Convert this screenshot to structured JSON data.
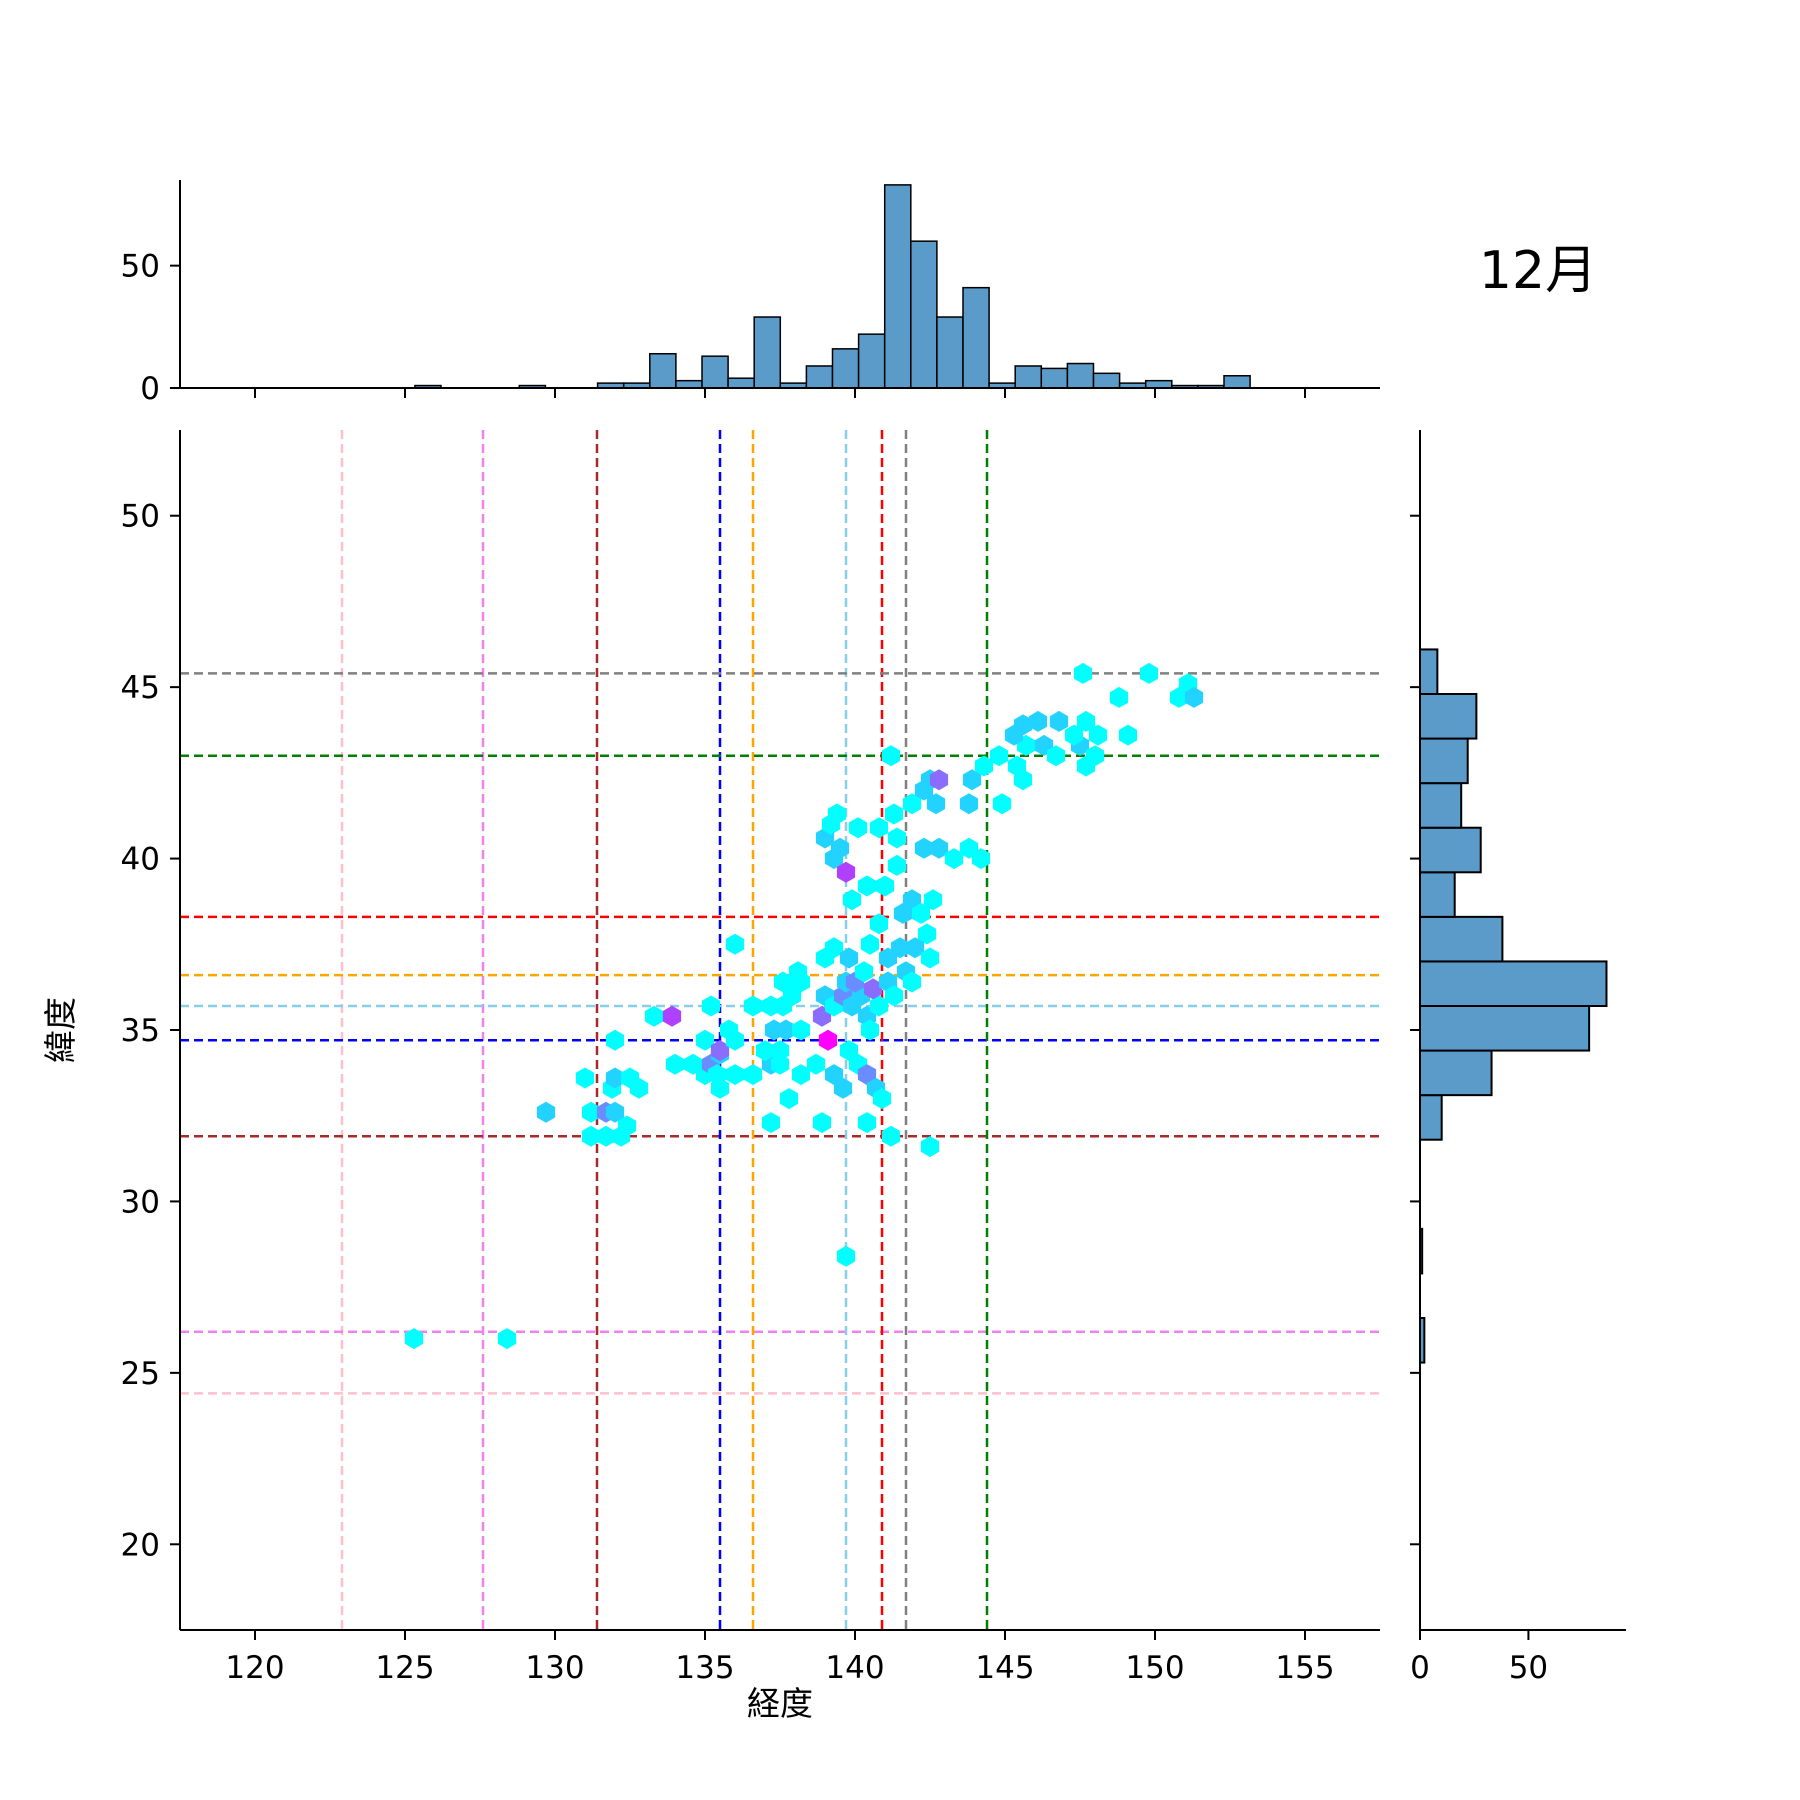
{
  "chart_data": {
    "type": "hexbin-jointplot",
    "title": "12月",
    "xlabel": "経度",
    "ylabel": "緯度",
    "xlim": [
      117.5,
      157.5
    ],
    "ylim": [
      17.5,
      52.5
    ],
    "x_ticks": [
      120,
      125,
      130,
      135,
      140,
      145,
      150,
      155
    ],
    "y_ticks": [
      20,
      25,
      30,
      35,
      40,
      45,
      50
    ],
    "reference_lines": [
      {
        "color": "#ffc0cb",
        "longitude": 122.9,
        "latitude": 24.4
      },
      {
        "color": "#ee82ee",
        "longitude": 127.6,
        "latitude": 26.2
      },
      {
        "color": "#a52a2a",
        "longitude": 131.4,
        "latitude": 31.9
      },
      {
        "color": "#0000ff",
        "longitude": 135.5,
        "latitude": 34.7
      },
      {
        "color": "#ffa500",
        "longitude": 136.6,
        "latitude": 36.6
      },
      {
        "color": "#87ceeb",
        "longitude": 139.7,
        "latitude": 35.7
      },
      {
        "color": "#ff0000",
        "longitude": 140.9,
        "latitude": 38.3
      },
      {
        "color": "#808080",
        "longitude": 141.7,
        "latitude": 45.4
      },
      {
        "color": "#008000",
        "longitude": 144.4,
        "latitude": 43.0
      }
    ],
    "hexbins": [
      {
        "x": 125.3,
        "y": 26.0,
        "c": "#00ffff"
      },
      {
        "x": 128.4,
        "y": 26.0,
        "c": "#00ffff"
      },
      {
        "x": 139.7,
        "y": 28.4,
        "c": "#00ffff"
      },
      {
        "x": 129.7,
        "y": 32.6,
        "c": "#22d2ff"
      },
      {
        "x": 131.2,
        "y": 32.6,
        "c": "#00ffff"
      },
      {
        "x": 131.2,
        "y": 31.9,
        "c": "#00ffff"
      },
      {
        "x": 131.7,
        "y": 32.6,
        "c": "#6a8cff"
      },
      {
        "x": 132.0,
        "y": 32.6,
        "c": "#22d2ff"
      },
      {
        "x": 131.9,
        "y": 33.3,
        "c": "#00ffff"
      },
      {
        "x": 131.0,
        "y": 33.6,
        "c": "#00ffff"
      },
      {
        "x": 132.0,
        "y": 33.6,
        "c": "#22d2ff"
      },
      {
        "x": 132.5,
        "y": 33.6,
        "c": "#00ffff"
      },
      {
        "x": 132.8,
        "y": 33.3,
        "c": "#00ffff"
      },
      {
        "x": 132.0,
        "y": 34.7,
        "c": "#00ffff"
      },
      {
        "x": 131.7,
        "y": 31.9,
        "c": "#00ffff"
      },
      {
        "x": 132.2,
        "y": 31.9,
        "c": "#00ffff"
      },
      {
        "x": 132.4,
        "y": 32.2,
        "c": "#00ffff"
      },
      {
        "x": 133.3,
        "y": 35.4,
        "c": "#00ffff"
      },
      {
        "x": 133.9,
        "y": 35.4,
        "c": "#b040ff"
      },
      {
        "x": 134.0,
        "y": 34.0,
        "c": "#00ffff"
      },
      {
        "x": 134.6,
        "y": 34.0,
        "c": "#00ffff"
      },
      {
        "x": 135.0,
        "y": 33.7,
        "c": "#00ffff"
      },
      {
        "x": 135.2,
        "y": 34.0,
        "c": "#6a8cff"
      },
      {
        "x": 135.5,
        "y": 34.3,
        "c": "#22d2ff"
      },
      {
        "x": 135.4,
        "y": 33.7,
        "c": "#00ffff"
      },
      {
        "x": 135.0,
        "y": 34.7,
        "c": "#00ffff"
      },
      {
        "x": 135.5,
        "y": 34.4,
        "c": "#8a6cff"
      },
      {
        "x": 135.2,
        "y": 35.7,
        "c": "#00ffff"
      },
      {
        "x": 135.8,
        "y": 35.0,
        "c": "#00ffff"
      },
      {
        "x": 136.0,
        "y": 34.7,
        "c": "#00ffff"
      },
      {
        "x": 135.5,
        "y": 33.3,
        "c": "#00ffff"
      },
      {
        "x": 136.0,
        "y": 33.7,
        "c": "#00ffff"
      },
      {
        "x": 136.0,
        "y": 37.5,
        "c": "#00ffff"
      },
      {
        "x": 136.6,
        "y": 35.7,
        "c": "#00ffff"
      },
      {
        "x": 137.2,
        "y": 35.7,
        "c": "#00ffff"
      },
      {
        "x": 136.6,
        "y": 33.7,
        "c": "#00ffff"
      },
      {
        "x": 137.2,
        "y": 34.0,
        "c": "#22d2ff"
      },
      {
        "x": 137.0,
        "y": 34.4,
        "c": "#00ffff"
      },
      {
        "x": 137.5,
        "y": 34.4,
        "c": "#00ffff"
      },
      {
        "x": 137.3,
        "y": 35.0,
        "c": "#22d2ff"
      },
      {
        "x": 137.7,
        "y": 35.0,
        "c": "#22d2ff"
      },
      {
        "x": 138.2,
        "y": 35.0,
        "c": "#00ffff"
      },
      {
        "x": 137.6,
        "y": 35.7,
        "c": "#00ffff"
      },
      {
        "x": 137.9,
        "y": 36.0,
        "c": "#00ffff"
      },
      {
        "x": 138.2,
        "y": 36.4,
        "c": "#00ffff"
      },
      {
        "x": 137.6,
        "y": 36.4,
        "c": "#00ffff"
      },
      {
        "x": 138.1,
        "y": 36.7,
        "c": "#00ffff"
      },
      {
        "x": 137.5,
        "y": 34.0,
        "c": "#00ffff"
      },
      {
        "x": 138.2,
        "y": 33.7,
        "c": "#00ffff"
      },
      {
        "x": 137.8,
        "y": 33.0,
        "c": "#00ffff"
      },
      {
        "x": 137.2,
        "y": 32.3,
        "c": "#00ffff"
      },
      {
        "x": 138.9,
        "y": 32.3,
        "c": "#00ffff"
      },
      {
        "x": 138.7,
        "y": 34.0,
        "c": "#00ffff"
      },
      {
        "x": 139.1,
        "y": 34.7,
        "c": "#ff00ff"
      },
      {
        "x": 138.9,
        "y": 35.4,
        "c": "#8a6cff"
      },
      {
        "x": 139.3,
        "y": 33.7,
        "c": "#22d2ff"
      },
      {
        "x": 139.6,
        "y": 33.3,
        "c": "#22d2ff"
      },
      {
        "x": 139.8,
        "y": 34.4,
        "c": "#00ffff"
      },
      {
        "x": 140.1,
        "y": 34.0,
        "c": "#00ffff"
      },
      {
        "x": 140.4,
        "y": 33.7,
        "c": "#6a8cff"
      },
      {
        "x": 140.7,
        "y": 33.3,
        "c": "#22d2ff"
      },
      {
        "x": 140.9,
        "y": 33.0,
        "c": "#00ffff"
      },
      {
        "x": 140.4,
        "y": 32.3,
        "c": "#00ffff"
      },
      {
        "x": 141.2,
        "y": 31.9,
        "c": "#00ffff"
      },
      {
        "x": 142.5,
        "y": 31.6,
        "c": "#00ffff"
      },
      {
        "x": 139.0,
        "y": 36.0,
        "c": "#22d2ff"
      },
      {
        "x": 139.3,
        "y": 35.7,
        "c": "#00ffff"
      },
      {
        "x": 139.6,
        "y": 36.0,
        "c": "#6a8cff"
      },
      {
        "x": 139.9,
        "y": 35.7,
        "c": "#22d2ff"
      },
      {
        "x": 140.2,
        "y": 36.0,
        "c": "#22d2ff"
      },
      {
        "x": 139.7,
        "y": 36.4,
        "c": "#22d2ff"
      },
      {
        "x": 140.0,
        "y": 36.4,
        "c": "#6a8cff"
      },
      {
        "x": 140.4,
        "y": 35.4,
        "c": "#22d2ff"
      },
      {
        "x": 140.5,
        "y": 35.0,
        "c": "#00ffff"
      },
      {
        "x": 140.8,
        "y": 35.7,
        "c": "#00ffff"
      },
      {
        "x": 140.3,
        "y": 36.7,
        "c": "#00ffff"
      },
      {
        "x": 139.0,
        "y": 37.1,
        "c": "#00ffff"
      },
      {
        "x": 139.3,
        "y": 37.4,
        "c": "#00ffff"
      },
      {
        "x": 139.8,
        "y": 37.1,
        "c": "#22d2ff"
      },
      {
        "x": 140.5,
        "y": 37.5,
        "c": "#00ffff"
      },
      {
        "x": 140.8,
        "y": 38.1,
        "c": "#00ffff"
      },
      {
        "x": 140.6,
        "y": 36.2,
        "c": "#8a6cff"
      },
      {
        "x": 141.1,
        "y": 36.4,
        "c": "#22d2ff"
      },
      {
        "x": 141.3,
        "y": 36.0,
        "c": "#00ffff"
      },
      {
        "x": 141.1,
        "y": 37.1,
        "c": "#22d2ff"
      },
      {
        "x": 141.5,
        "y": 37.4,
        "c": "#22d2ff"
      },
      {
        "x": 141.7,
        "y": 36.7,
        "c": "#22d2ff"
      },
      {
        "x": 141.9,
        "y": 36.4,
        "c": "#00ffff"
      },
      {
        "x": 141.6,
        "y": 38.4,
        "c": "#22d2ff"
      },
      {
        "x": 141.9,
        "y": 38.8,
        "c": "#22d2ff"
      },
      {
        "x": 142.2,
        "y": 38.4,
        "c": "#00ffff"
      },
      {
        "x": 142.4,
        "y": 37.8,
        "c": "#00ffff"
      },
      {
        "x": 142.0,
        "y": 37.4,
        "c": "#22d2ff"
      },
      {
        "x": 142.5,
        "y": 37.1,
        "c": "#00ffff"
      },
      {
        "x": 142.6,
        "y": 38.8,
        "c": "#00ffff"
      },
      {
        "x": 141.0,
        "y": 39.2,
        "c": "#00ffff"
      },
      {
        "x": 140.4,
        "y": 39.2,
        "c": "#00ffff"
      },
      {
        "x": 139.9,
        "y": 38.8,
        "c": "#00ffff"
      },
      {
        "x": 139.3,
        "y": 40.0,
        "c": "#22d2ff"
      },
      {
        "x": 139.0,
        "y": 40.6,
        "c": "#22d2ff"
      },
      {
        "x": 139.5,
        "y": 40.3,
        "c": "#22d2ff"
      },
      {
        "x": 139.7,
        "y": 39.6,
        "c": "#b040ff"
      },
      {
        "x": 139.2,
        "y": 41.0,
        "c": "#00ffff"
      },
      {
        "x": 139.4,
        "y": 41.3,
        "c": "#00ffff"
      },
      {
        "x": 140.1,
        "y": 40.9,
        "c": "#00ffff"
      },
      {
        "x": 140.8,
        "y": 40.9,
        "c": "#00ffff"
      },
      {
        "x": 141.3,
        "y": 41.3,
        "c": "#00ffff"
      },
      {
        "x": 141.4,
        "y": 40.6,
        "c": "#00ffff"
      },
      {
        "x": 141.4,
        "y": 39.8,
        "c": "#00ffff"
      },
      {
        "x": 142.3,
        "y": 40.3,
        "c": "#22d2ff"
      },
      {
        "x": 142.8,
        "y": 40.3,
        "c": "#22d2ff"
      },
      {
        "x": 143.3,
        "y": 40.0,
        "c": "#00ffff"
      },
      {
        "x": 143.8,
        "y": 40.3,
        "c": "#00ffff"
      },
      {
        "x": 144.2,
        "y": 40.0,
        "c": "#00ffff"
      },
      {
        "x": 141.9,
        "y": 41.6,
        "c": "#00ffff"
      },
      {
        "x": 142.3,
        "y": 42.0,
        "c": "#22d2ff"
      },
      {
        "x": 142.7,
        "y": 41.6,
        "c": "#22d2ff"
      },
      {
        "x": 142.5,
        "y": 42.3,
        "c": "#22d2ff"
      },
      {
        "x": 142.8,
        "y": 42.3,
        "c": "#8a6cff"
      },
      {
        "x": 141.2,
        "y": 43.0,
        "c": "#00ffff"
      },
      {
        "x": 143.8,
        "y": 41.6,
        "c": "#22d2ff"
      },
      {
        "x": 143.9,
        "y": 42.3,
        "c": "#22d2ff"
      },
      {
        "x": 144.3,
        "y": 42.7,
        "c": "#00ffff"
      },
      {
        "x": 144.8,
        "y": 43.0,
        "c": "#00ffff"
      },
      {
        "x": 144.9,
        "y": 41.6,
        "c": "#00ffff"
      },
      {
        "x": 145.4,
        "y": 42.7,
        "c": "#00ffff"
      },
      {
        "x": 145.7,
        "y": 43.3,
        "c": "#00ffff"
      },
      {
        "x": 145.3,
        "y": 43.6,
        "c": "#22d2ff"
      },
      {
        "x": 145.6,
        "y": 42.3,
        "c": "#00ffff"
      },
      {
        "x": 145.6,
        "y": 43.9,
        "c": "#22d2ff"
      },
      {
        "x": 146.1,
        "y": 44.0,
        "c": "#22d2ff"
      },
      {
        "x": 146.3,
        "y": 43.3,
        "c": "#22d2ff"
      },
      {
        "x": 146.7,
        "y": 43.0,
        "c": "#00ffff"
      },
      {
        "x": 146.8,
        "y": 44.0,
        "c": "#22d2ff"
      },
      {
        "x": 147.5,
        "y": 43.3,
        "c": "#22d2ff"
      },
      {
        "x": 147.3,
        "y": 43.6,
        "c": "#00ffff"
      },
      {
        "x": 148.0,
        "y": 43.0,
        "c": "#00ffff"
      },
      {
        "x": 147.7,
        "y": 44.0,
        "c": "#00ffff"
      },
      {
        "x": 148.1,
        "y": 43.6,
        "c": "#00ffff"
      },
      {
        "x": 149.1,
        "y": 43.6,
        "c": "#00ffff"
      },
      {
        "x": 147.7,
        "y": 42.7,
        "c": "#00ffff"
      },
      {
        "x": 147.6,
        "y": 45.4,
        "c": "#00ffff"
      },
      {
        "x": 148.8,
        "y": 44.7,
        "c": "#00ffff"
      },
      {
        "x": 149.8,
        "y": 45.4,
        "c": "#00ffff"
      },
      {
        "x": 150.8,
        "y": 44.7,
        "c": "#00ffff"
      },
      {
        "x": 151.1,
        "y": 45.1,
        "c": "#00ffff"
      },
      {
        "x": 151.3,
        "y": 44.7,
        "c": "#22d2ff"
      }
    ],
    "x_hist": {
      "bin_start": 117.5,
      "bin_width": 0.87,
      "ylim": [
        0,
        85
      ],
      "y_ticks": [
        0,
        50
      ],
      "counts": [
        0,
        0,
        0,
        0,
        0,
        0,
        0,
        0,
        0,
        1,
        0,
        0,
        0,
        1,
        0,
        0,
        2,
        2,
        14,
        3,
        13,
        4,
        29,
        2,
        9,
        16,
        22,
        83,
        60,
        29,
        41,
        2,
        9,
        8,
        10,
        6,
        2,
        3,
        1,
        1,
        5,
        0,
        0,
        0,
        0,
        0
      ]
    },
    "y_hist": {
      "bin_start": 17.5,
      "bin_width": 1.3,
      "xlim": [
        0,
        95
      ],
      "x_ticks": [
        0,
        50
      ],
      "counts": [
        0,
        0,
        0,
        0,
        0,
        0,
        2,
        0,
        1,
        0,
        0,
        10,
        33,
        78,
        86,
        38,
        16,
        28,
        19,
        22,
        26,
        8,
        0,
        0,
        0,
        0,
        0
      ]
    }
  }
}
